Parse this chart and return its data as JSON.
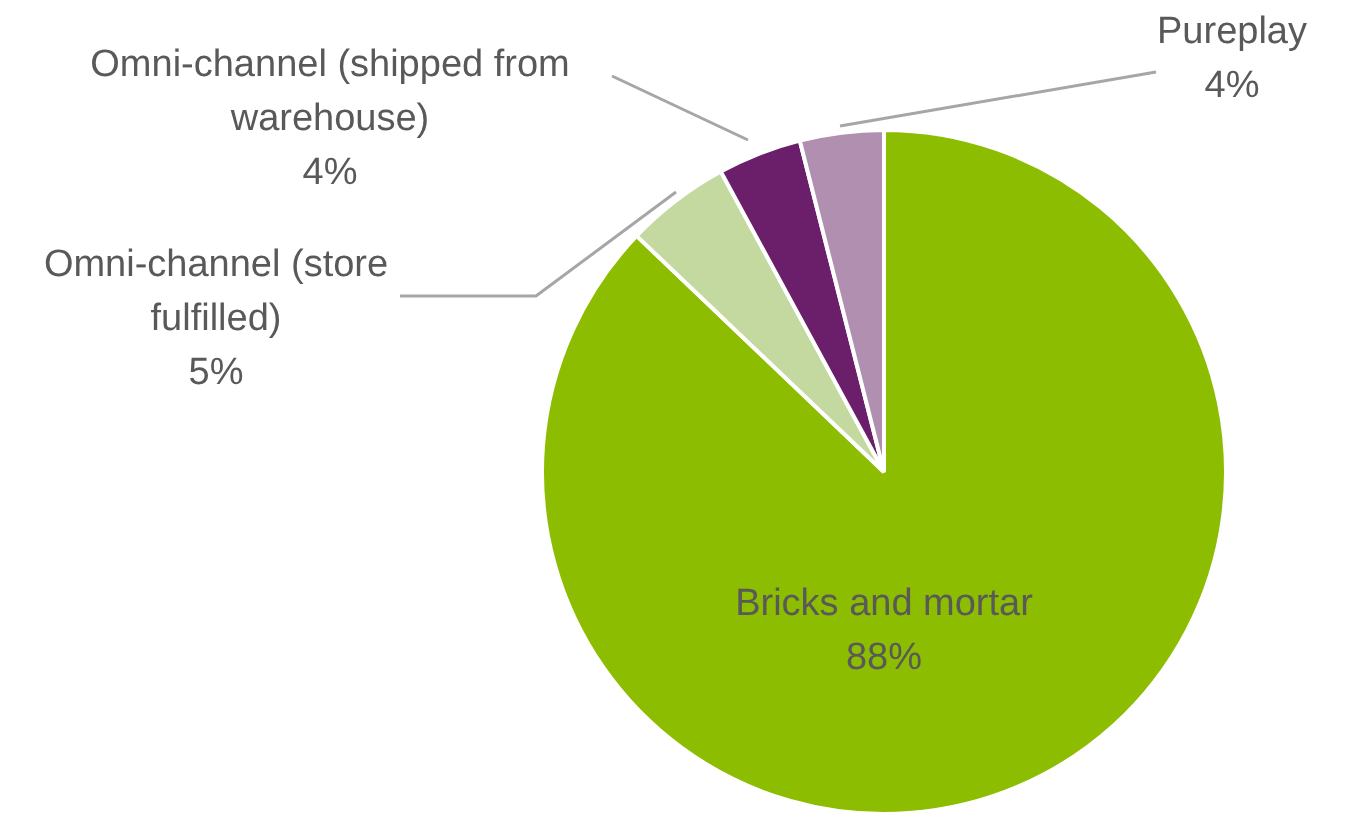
{
  "chart_data": {
    "type": "pie",
    "categories": [
      "Bricks and mortar",
      "Omni-channel (store fulfilled)",
      "Omni-channel (shipped from warehouse)",
      "Pureplay"
    ],
    "values": [
      88,
      5,
      4,
      4
    ],
    "value_labels": [
      "88%",
      "5%",
      "4%",
      "4%"
    ],
    "colors": [
      "#8cbd00",
      "#c3d9a0",
      "#6b1f6b",
      "#b08fb0"
    ],
    "legend": false
  }
}
